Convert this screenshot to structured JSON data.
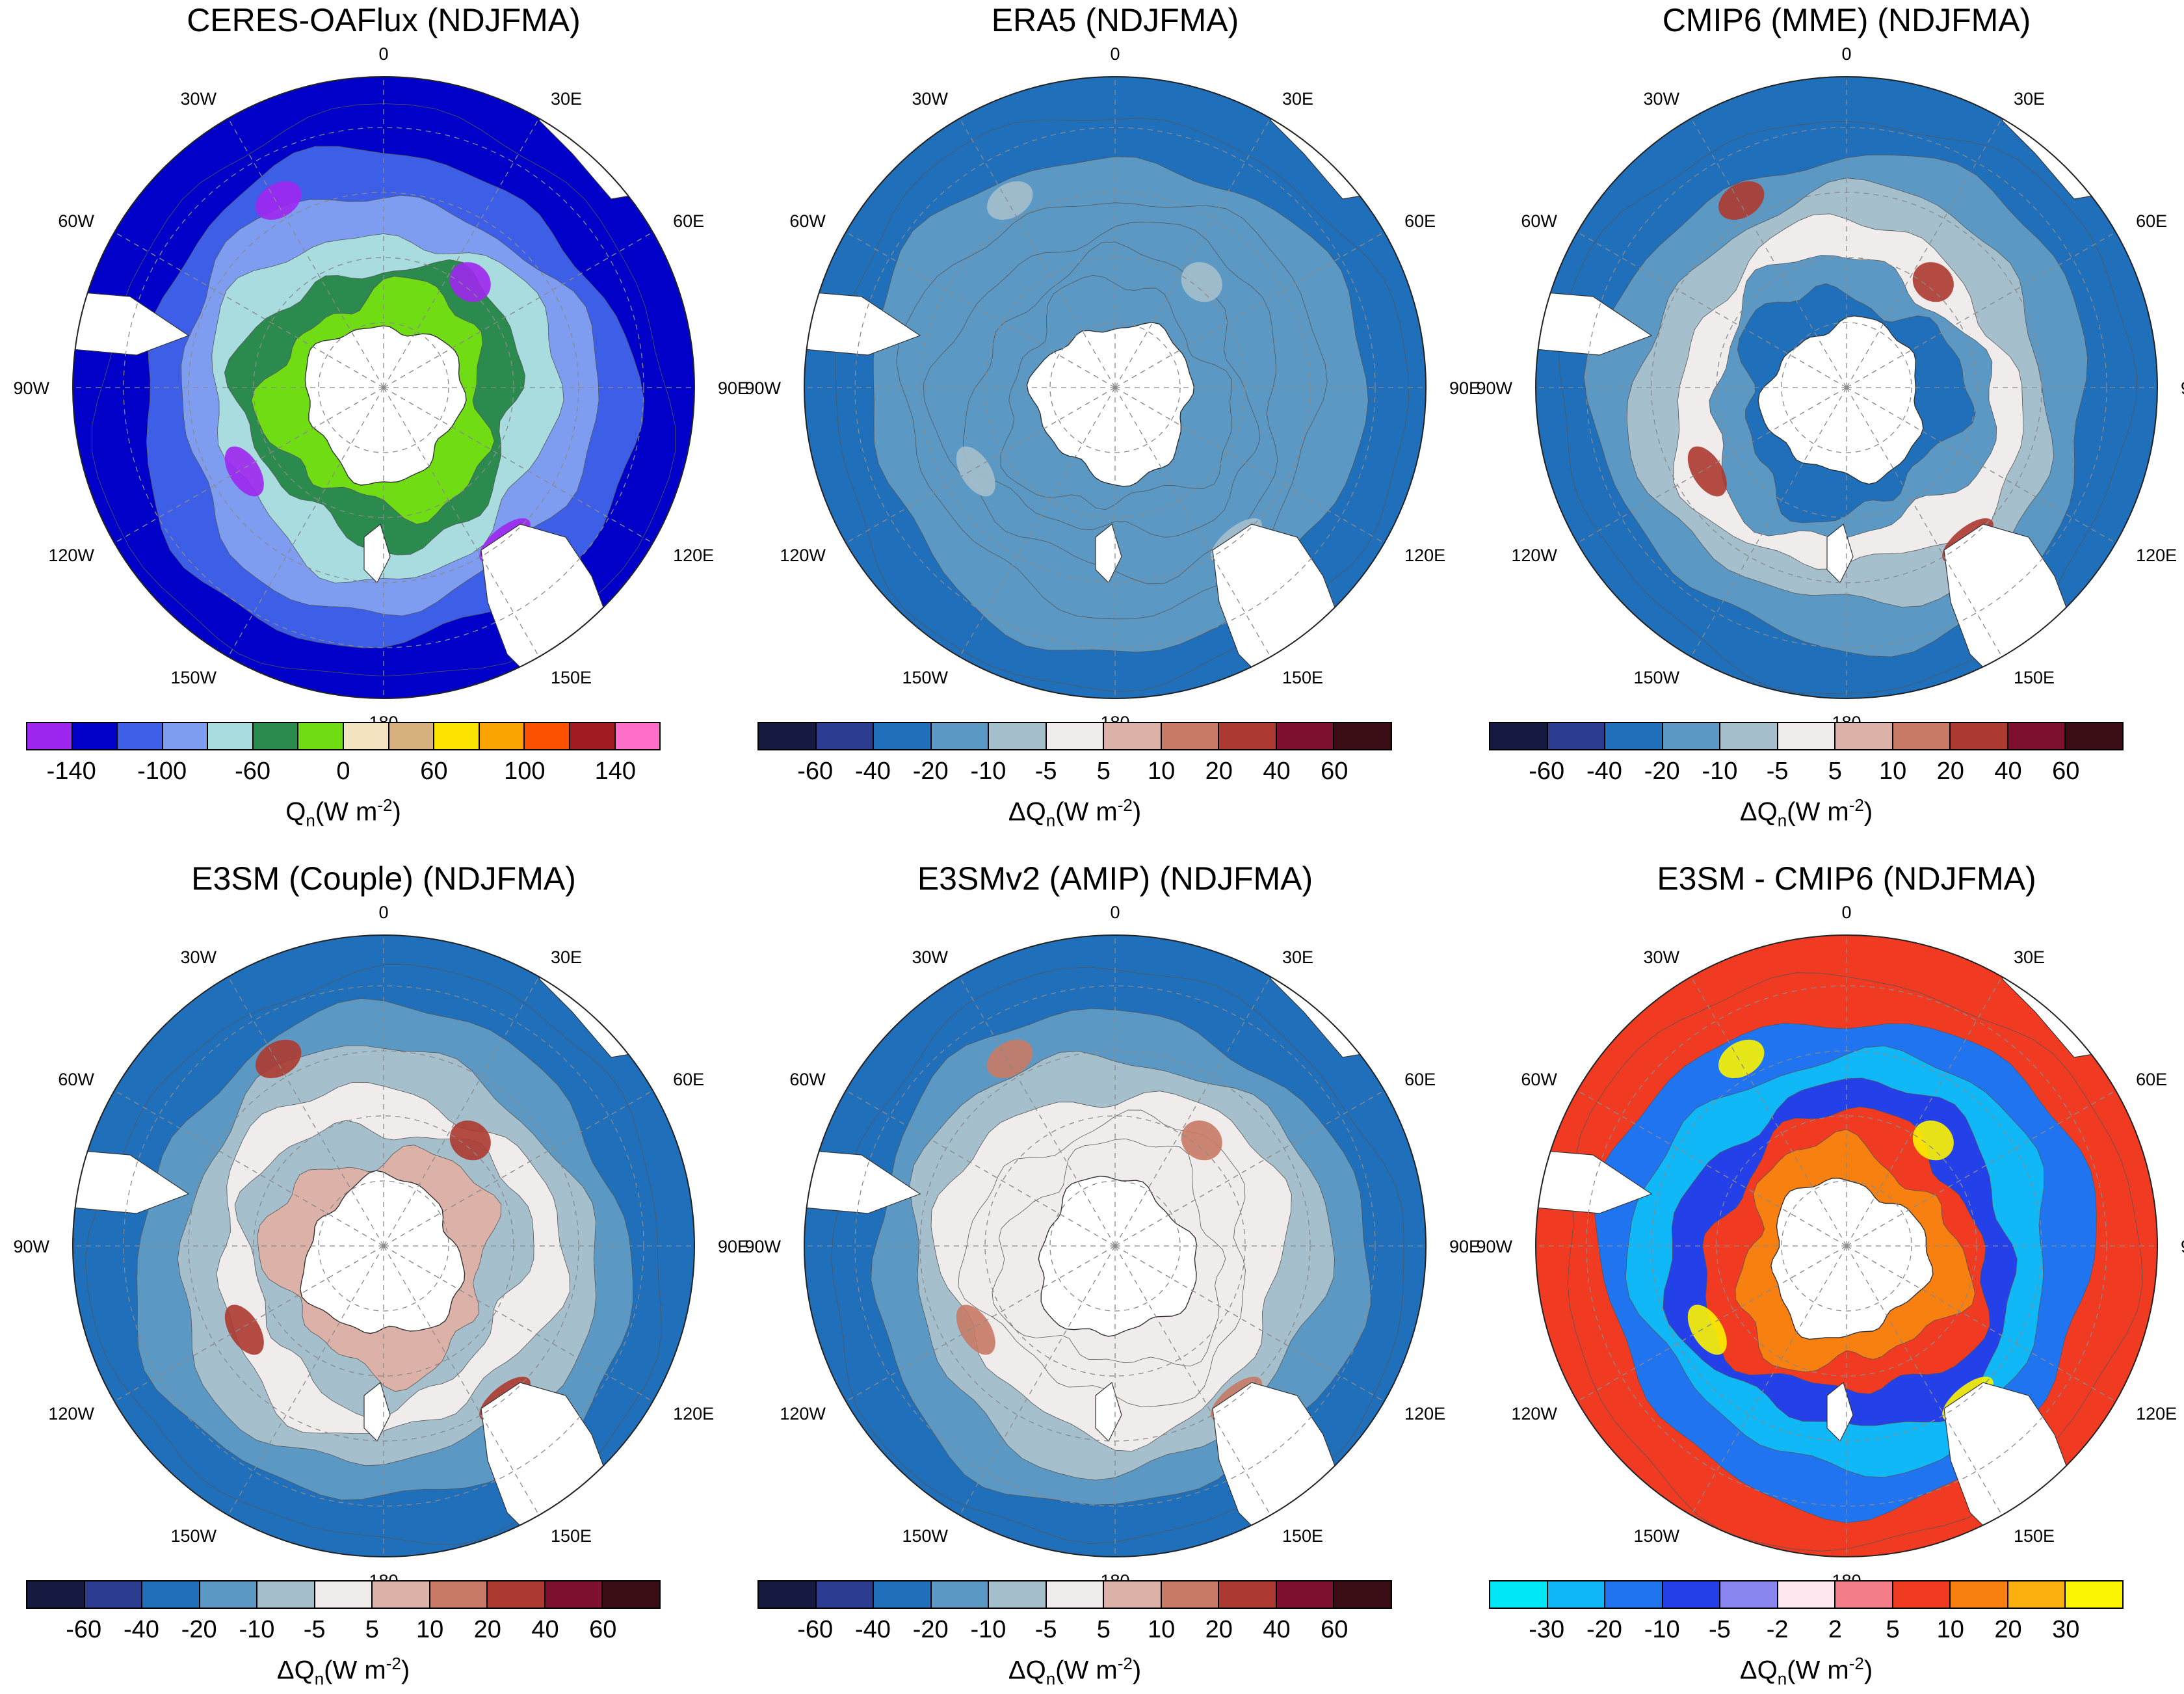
{
  "longitude_labels": [
    "0",
    "30E",
    "60E",
    "90E",
    "120E",
    "150E",
    "180",
    "150W",
    "120W",
    "90W",
    "60W",
    "30W"
  ],
  "palettes": {
    "obs": [
      "#9e27f0",
      "#0000c8",
      "#3d5fe8",
      "#7e9df0",
      "#a8dcdf",
      "#2b8a4e",
      "#6fdc14",
      "#f4e4c1",
      "#d8b07e",
      "#fde400",
      "#fba300",
      "#fa5000",
      "#a01c22",
      "#ff6ec7"
    ],
    "diff": [
      "#161a40",
      "#2c3c90",
      "#1f6fbb",
      "#5b99c4",
      "#a5bfcd",
      "#f0ecec",
      "#dcb2a8",
      "#c87a66",
      "#ad3a30",
      "#7e1030",
      "#3a0c14"
    ],
    "model_diff": [
      "#00e8f8",
      "#10b8f8",
      "#2074f0",
      "#2440e8",
      "#8a86f0",
      "#ffe8f0",
      "#f47f8a",
      "#f03a22",
      "#f88010",
      "#fcb010",
      "#fcf400"
    ]
  },
  "panels": [
    {
      "id": "ceres-oaflux",
      "title": "CERES-OAFlux  (NDJFMA)",
      "palette": "obs",
      "ocean_color": "#0000c8",
      "band_colors": [
        "#0000c8",
        "#3d5fe8",
        "#7e9df0",
        "#a8dcdf",
        "#2b8a4e",
        "#6fdc14"
      ],
      "highlight_color": "#9e27f0",
      "ticks": [
        "-140",
        "-100",
        "-60",
        "0",
        "60",
        "100",
        "140"
      ],
      "unit_prefix": "",
      "unit_var": "Q",
      "unit_sub": "n",
      "unit_text": "(W m",
      "unit_sup": "-2",
      "unit_close": ")"
    },
    {
      "id": "era5",
      "title": "ERA5  (NDJFMA)",
      "palette": "diff",
      "ocean_color": "#1f6fbb",
      "band_colors": [
        "#1f6fbb",
        "#5b99c4",
        "#5b99c4",
        "#5b99c4",
        "#5b99c4",
        "#5b99c4"
      ],
      "highlight_color": "#a5bfcd",
      "ticks": [
        "-60",
        "-40",
        "-20",
        "-10",
        "-5",
        "5",
        "10",
        "20",
        "40",
        "60"
      ],
      "unit_prefix": "Δ",
      "unit_var": "Q",
      "unit_sub": "n",
      "unit_text": "(W m",
      "unit_sup": "-2",
      "unit_close": ")"
    },
    {
      "id": "cmip6-mme",
      "title": "CMIP6 (MME)  (NDJFMA)",
      "palette": "diff",
      "ocean_color": "#1f6fbb",
      "band_colors": [
        "#1f6fbb",
        "#5b99c4",
        "#a5bfcd",
        "#f0ecec",
        "#5b99c4",
        "#1f6fbb"
      ],
      "highlight_color": "#ad3a30",
      "ticks": [
        "-60",
        "-40",
        "-20",
        "-10",
        "-5",
        "5",
        "10",
        "20",
        "40",
        "60"
      ],
      "unit_prefix": "Δ",
      "unit_var": "Q",
      "unit_sub": "n",
      "unit_text": "(W m",
      "unit_sup": "-2",
      "unit_close": ")"
    },
    {
      "id": "e3sm-couple",
      "title": "E3SM (Couple)  (NDJFMA)",
      "palette": "diff",
      "ocean_color": "#1f6fbb",
      "band_colors": [
        "#1f6fbb",
        "#5b99c4",
        "#a5bfcd",
        "#f0ecec",
        "#a5bfcd",
        "#dcb2a8"
      ],
      "highlight_color": "#ad3a30",
      "ticks": [
        "-60",
        "-40",
        "-20",
        "-10",
        "-5",
        "5",
        "10",
        "20",
        "40",
        "60"
      ],
      "unit_prefix": "Δ",
      "unit_var": "Q",
      "unit_sub": "n",
      "unit_text": "(W m",
      "unit_sup": "-2",
      "unit_close": ")"
    },
    {
      "id": "e3smv2-amip",
      "title": "E3SMv2 (AMIP)  (NDJFMA)",
      "palette": "diff",
      "ocean_color": "#1f6fbb",
      "band_colors": [
        "#1f6fbb",
        "#5b99c4",
        "#a5bfcd",
        "#f0ecec",
        "#f0ecec",
        "#f0ecec"
      ],
      "highlight_color": "#c87a66",
      "ticks": [
        "-60",
        "-40",
        "-20",
        "-10",
        "-5",
        "5",
        "10",
        "20",
        "40",
        "60"
      ],
      "unit_prefix": "Δ",
      "unit_var": "Q",
      "unit_sub": "n",
      "unit_text": "(W m",
      "unit_sup": "-2",
      "unit_close": ")"
    },
    {
      "id": "e3sm-minus-cmip6",
      "title": "E3SM - CMIP6  (NDJFMA)",
      "palette": "model_diff",
      "ocean_color": "#f03a22",
      "band_colors": [
        "#f03a22",
        "#2074f0",
        "#10b8f8",
        "#2440e8",
        "#f03a22",
        "#f88010"
      ],
      "highlight_color": "#fcf400",
      "ticks": [
        "-30",
        "-20",
        "-10",
        "-5",
        "-2",
        "2",
        "5",
        "10",
        "20",
        "30"
      ],
      "unit_prefix": "Δ",
      "unit_var": "Q",
      "unit_sub": "n",
      "unit_text": "(W m",
      "unit_sup": "-2",
      "unit_close": ")"
    }
  ]
}
